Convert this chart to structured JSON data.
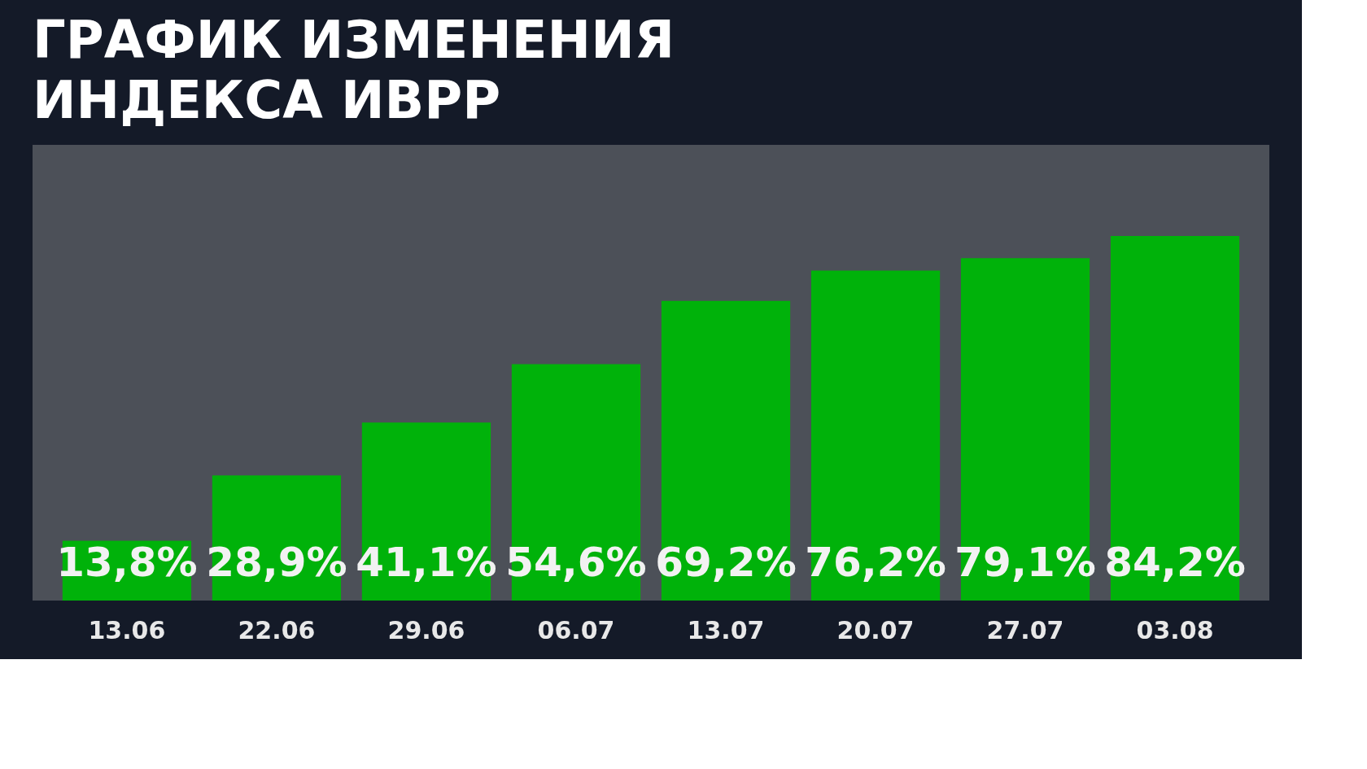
{
  "chart_data": {
    "type": "bar",
    "title": "ГРАФИК ИЗМЕНЕНИЯ\nИНДЕКСА ИВРР",
    "categories": [
      "13.06",
      "22.06",
      "29.06",
      "06.07",
      "13.07",
      "20.07",
      "27.07",
      "03.08"
    ],
    "values": [
      13.8,
      28.9,
      41.1,
      54.6,
      69.2,
      76.2,
      79.1,
      84.2
    ],
    "value_labels": [
      "13,8%",
      "28,9%",
      "41,1%",
      "54,6%",
      "69,2%",
      "76,2%",
      "79,1%",
      "84,2%"
    ],
    "color": "#00b20a"
  }
}
